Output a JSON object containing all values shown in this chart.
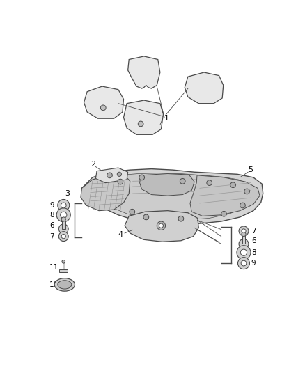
{
  "background_color": "#ffffff",
  "line_color": "#4a4a4a",
  "label_color": "#000000",
  "figsize": [
    4.38,
    5.33
  ],
  "dpi": 100,
  "part_fill": "#d8d8d8",
  "part_fill2": "#e8e8e8",
  "part_fill3": "#c8c8c8"
}
